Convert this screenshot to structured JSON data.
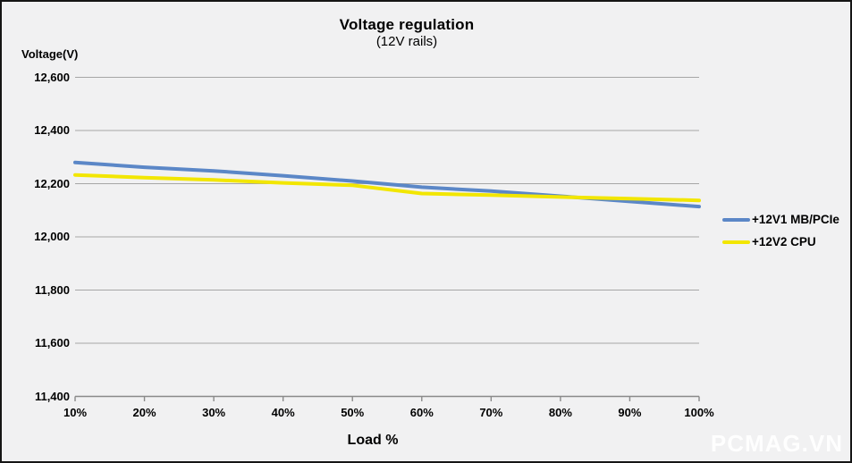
{
  "header": {
    "title": "Voltage regulation",
    "subtitle": "(12V rails)"
  },
  "watermark": "PCMAG.VN",
  "colors": {
    "background": "#f1f1f2",
    "grid": "#a6a6a6",
    "axis": "#8a8a8a",
    "series1": "#5b87c7",
    "series2": "#f2e600",
    "text": "#000000",
    "watermark": "#ffffff"
  },
  "legend": {
    "items": [
      {
        "label": "+12V1 MB/PCIe",
        "color": "#5b87c7"
      },
      {
        "label": "+12V2 CPU",
        "color": "#f2e600"
      }
    ]
  },
  "chart_data": {
    "type": "line",
    "title": "Voltage regulation",
    "subtitle": "(12V rails)",
    "xlabel": "Load %",
    "ylabel": "Voltage(V)",
    "x": [
      10,
      20,
      30,
      40,
      50,
      60,
      70,
      80,
      90,
      100
    ],
    "x_tick_labels": [
      "10%",
      "20%",
      "30%",
      "40%",
      "50%",
      "60%",
      "70%",
      "80%",
      "90%",
      "100%"
    ],
    "y_ticks": [
      11400,
      11600,
      11800,
      12000,
      12200,
      12400,
      12600
    ],
    "y_tick_labels": [
      "11,400",
      "11,600",
      "11,800",
      "12,000",
      "12,200",
      "12,400",
      "12,600"
    ],
    "ylim": [
      11400,
      12600
    ],
    "grid": "horizontal",
    "legend_position": "right-middle",
    "series": [
      {
        "name": "+12V1 MB/PCIe",
        "color": "#5b87c7",
        "values": [
          12280,
          12262,
          12248,
          12230,
          12210,
          12187,
          12172,
          12153,
          12133,
          12114
        ]
      },
      {
        "name": "+12V2 CPU",
        "color": "#f2e600",
        "values": [
          12233,
          12223,
          12214,
          12203,
          12194,
          12163,
          12157,
          12150,
          12144,
          12137
        ]
      }
    ]
  }
}
